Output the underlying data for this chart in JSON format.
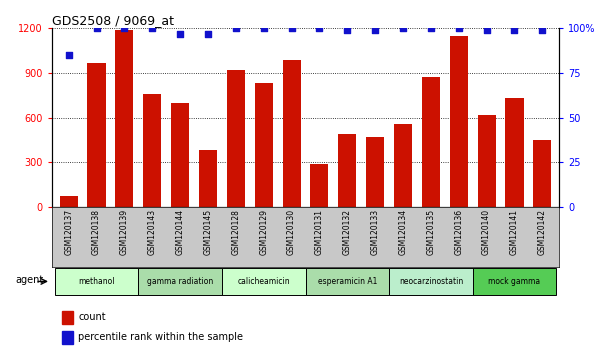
{
  "title": "GDS2508 / 9069_at",
  "samples": [
    "GSM120137",
    "GSM120138",
    "GSM120139",
    "GSM120143",
    "GSM120144",
    "GSM120145",
    "GSM120128",
    "GSM120129",
    "GSM120130",
    "GSM120131",
    "GSM120132",
    "GSM120133",
    "GSM120134",
    "GSM120135",
    "GSM120136",
    "GSM120140",
    "GSM120141",
    "GSM120142"
  ],
  "counts": [
    75,
    970,
    1190,
    760,
    700,
    380,
    920,
    830,
    990,
    290,
    490,
    470,
    560,
    870,
    1150,
    620,
    730,
    450
  ],
  "percentiles": [
    85,
    100,
    100,
    100,
    97,
    97,
    100,
    100,
    100,
    100,
    99,
    99,
    100,
    100,
    100,
    99,
    99,
    99
  ],
  "bar_color": "#cc1100",
  "dot_color": "#1111cc",
  "ylim_left": [
    0,
    1200
  ],
  "ylim_right": [
    0,
    100
  ],
  "yticks_left": [
    0,
    300,
    600,
    900,
    1200
  ],
  "yticks_right": [
    0,
    25,
    50,
    75,
    100
  ],
  "agent_groups": [
    {
      "label": "methanol",
      "start": 0,
      "end": 3,
      "color": "#ccffcc"
    },
    {
      "label": "gamma radiation",
      "start": 3,
      "end": 6,
      "color": "#aaddaa"
    },
    {
      "label": "calicheamicin",
      "start": 6,
      "end": 9,
      "color": "#ccffcc"
    },
    {
      "label": "esperamicin A1",
      "start": 9,
      "end": 12,
      "color": "#aaddaa"
    },
    {
      "label": "neocarzinostatin",
      "start": 12,
      "end": 15,
      "color": "#bbeecc"
    },
    {
      "label": "mock gamma",
      "start": 15,
      "end": 18,
      "color": "#55cc55"
    }
  ],
  "legend_count_label": "count",
  "legend_pct_label": "percentile rank within the sample",
  "agent_label": "agent",
  "xlabel_bg": "#cccccc",
  "agent_bg": "#e8e8e8"
}
